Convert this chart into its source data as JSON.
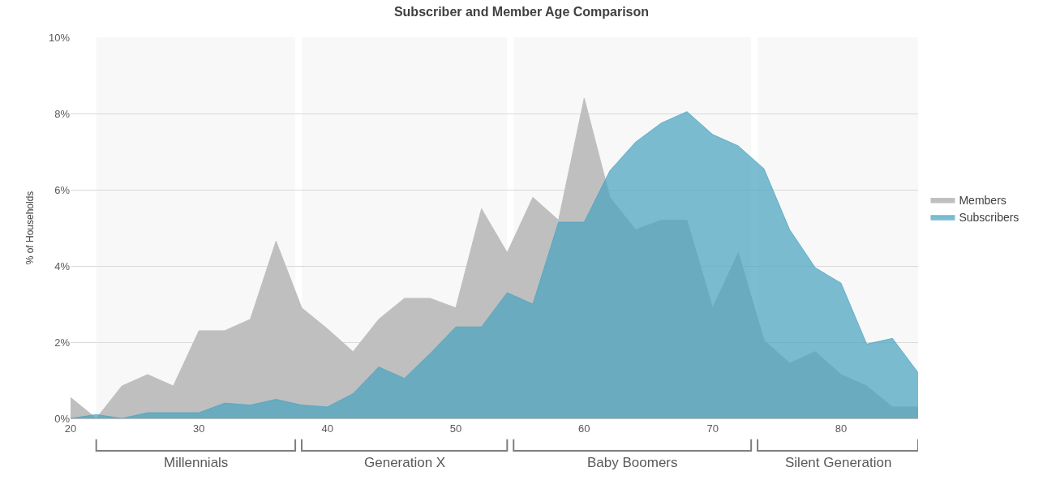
{
  "chart_data": {
    "type": "area",
    "title": "Subscriber and Member Age Comparison",
    "ylabel": "% of Households",
    "x": [
      20,
      22,
      24,
      26,
      28,
      30,
      32,
      34,
      36,
      38,
      40,
      42,
      44,
      46,
      48,
      50,
      52,
      54,
      56,
      58,
      60,
      62,
      64,
      66,
      68,
      70,
      72,
      74,
      76,
      78,
      80,
      82,
      84,
      86
    ],
    "series": [
      {
        "name": "Members",
        "color": "#bfbfbf",
        "values": [
          0.55,
          0.0,
          0.85,
          1.15,
          0.85,
          2.3,
          2.3,
          2.6,
          4.65,
          2.9,
          2.35,
          1.75,
          2.6,
          3.15,
          3.15,
          2.9,
          5.5,
          4.35,
          5.8,
          5.2,
          8.4,
          5.8,
          4.95,
          5.2,
          5.2,
          2.9,
          4.35,
          2.05,
          1.45,
          1.75,
          1.15,
          0.85,
          0.3,
          0.3
        ]
      },
      {
        "name": "Subscribers",
        "color": "#4aa3c0",
        "values": [
          0.0,
          0.1,
          0.0,
          0.15,
          0.15,
          0.15,
          0.4,
          0.35,
          0.5,
          0.35,
          0.3,
          0.65,
          1.35,
          1.05,
          1.7,
          2.4,
          2.4,
          3.3,
          3.0,
          5.15,
          5.15,
          6.5,
          7.25,
          7.75,
          8.05,
          7.45,
          7.15,
          6.55,
          4.95,
          3.95,
          3.55,
          1.95,
          2.1,
          1.2
        ]
      }
    ],
    "xlim": [
      20,
      86
    ],
    "xticks": [
      20,
      30,
      40,
      50,
      60,
      70,
      80
    ],
    "ylim": [
      0,
      10
    ],
    "yticks": [
      {
        "value": 0,
        "label": "0%"
      },
      {
        "value": 2,
        "label": "2%"
      },
      {
        "value": 4,
        "label": "4%"
      },
      {
        "value": 6,
        "label": "6%"
      },
      {
        "value": 8,
        "label": "8%"
      },
      {
        "value": 10,
        "label": "10%"
      }
    ],
    "bands": [
      {
        "axis": "x",
        "from": 22,
        "to": 37.5,
        "label": "Millennials"
      },
      {
        "axis": "x",
        "from": 38,
        "to": 54,
        "label": "Generation X"
      },
      {
        "axis": "x",
        "from": 54.5,
        "to": 73,
        "label": "Baby Boomers"
      },
      {
        "axis": "x",
        "from": 73.5,
        "to": 86,
        "label": "Silent Generation"
      }
    ],
    "grid": "y",
    "legend": "right"
  }
}
